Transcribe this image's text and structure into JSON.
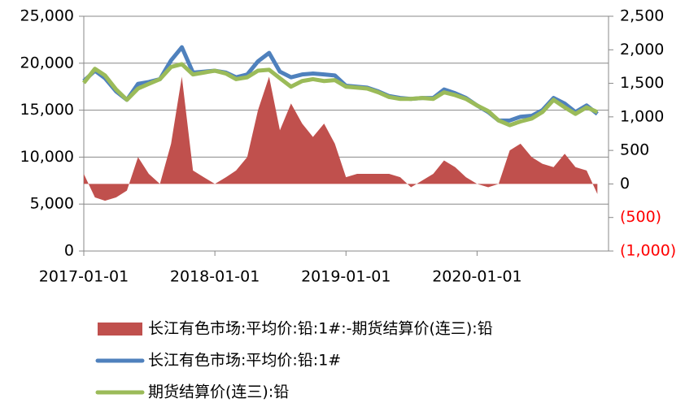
{
  "chart_data": {
    "type": "line",
    "x": [
      "2017-01-01",
      "2017-02-01",
      "2017-03-01",
      "2017-04-01",
      "2017-05-01",
      "2017-06-01",
      "2017-07-01",
      "2017-08-01",
      "2017-09-01",
      "2017-10-01",
      "2017-11-01",
      "2017-12-01",
      "2018-01-01",
      "2018-02-01",
      "2018-03-01",
      "2018-04-01",
      "2018-05-01",
      "2018-06-01",
      "2018-07-01",
      "2018-08-01",
      "2018-09-01",
      "2018-10-01",
      "2018-11-01",
      "2018-12-01",
      "2019-01-01",
      "2019-02-01",
      "2019-03-01",
      "2019-04-01",
      "2019-05-01",
      "2019-06-01",
      "2019-07-01",
      "2019-08-01",
      "2019-09-01",
      "2019-10-01",
      "2019-11-01",
      "2019-12-01",
      "2020-01-01",
      "2020-02-01",
      "2020-03-01",
      "2020-04-01",
      "2020-05-01",
      "2020-06-01",
      "2020-07-01",
      "2020-08-01",
      "2020-09-01",
      "2020-10-01",
      "2020-11-01",
      "2020-12-01"
    ],
    "series": [
      {
        "name": "长江有色市场:平均价:铅:1#:-期货结算价(连三):铅",
        "type": "area",
        "axis": "y2",
        "color": "#c0504d",
        "values": [
          150,
          -200,
          -250,
          -200,
          -100,
          400,
          150,
          0,
          600,
          1600,
          200,
          100,
          0,
          100,
          200,
          400,
          1100,
          1600,
          800,
          1200,
          900,
          700,
          900,
          600,
          100,
          150,
          150,
          150,
          150,
          100,
          -50,
          50,
          150,
          350,
          250,
          100,
          0,
          -50,
          0,
          500,
          600,
          400,
          300,
          250,
          450,
          250,
          200,
          -150
        ]
      },
      {
        "name": "长江有色市场:平均价:铅:1#",
        "color": "#4f81bd",
        "values": [
          18100,
          19200,
          18400,
          17000,
          16100,
          17800,
          18000,
          18300,
          20300,
          21700,
          19000,
          19100,
          19200,
          19000,
          18500,
          18800,
          20200,
          21100,
          19100,
          18500,
          18800,
          18900,
          18800,
          18700,
          17600,
          17500,
          17400,
          17000,
          16500,
          16300,
          16200,
          16300,
          16300,
          17200,
          16800,
          16300,
          15500,
          14800,
          13900,
          13900,
          14300,
          14400,
          15000,
          16300,
          15700,
          14800,
          15500,
          14600
        ]
      },
      {
        "name": "期货结算价(连三):铅",
        "color": "#9bbb59",
        "values": [
          17900,
          19400,
          18700,
          17200,
          16100,
          17300,
          17800,
          18300,
          19600,
          19900,
          18800,
          19000,
          19200,
          18900,
          18300,
          18500,
          19200,
          19300,
          18400,
          17500,
          18100,
          18300,
          18100,
          18200,
          17500,
          17400,
          17300,
          16900,
          16400,
          16200,
          16200,
          16300,
          16200,
          16900,
          16600,
          16200,
          15500,
          14900,
          13900,
          13400,
          13800,
          14100,
          14800,
          16100,
          15300,
          14600,
          15300,
          14800
        ]
      }
    ],
    "xlim": [
      "2017-01-01",
      "2021-01-01"
    ],
    "xticks": [
      "2017-01-01",
      "2018-01-01",
      "2019-01-01",
      "2020-01-01"
    ],
    "ylim": [
      0,
      25000
    ],
    "yticks": [
      0,
      {
        "value": 5000,
        "label": "5,000"
      },
      {
        "value": 10000,
        "label": "10,000"
      },
      {
        "value": 15000,
        "label": "15,000"
      },
      {
        "value": 20000,
        "label": "20,000"
      },
      {
        "value": 25000,
        "label": "25,000"
      }
    ],
    "y2lim": [
      -1000,
      2500
    ],
    "y2ticks": [
      {
        "value": -1000,
        "label": "(1,000)"
      },
      {
        "value": -500,
        "label": "(500)"
      },
      0,
      500,
      {
        "value": 1000,
        "label": "1,000"
      },
      {
        "value": 1500,
        "label": "1,500"
      },
      {
        "value": 2000,
        "label": "2,000"
      },
      {
        "value": 2500,
        "label": "2,500"
      }
    ],
    "negative_tick_color": "#ff0000",
    "grid": true,
    "legend": "bottom"
  }
}
